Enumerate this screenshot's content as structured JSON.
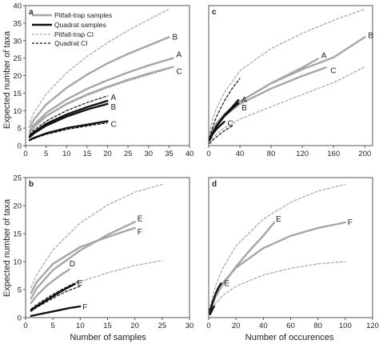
{
  "figure": {
    "ylabel": "Expected number of taxa",
    "xlabel_left": "Number of samples",
    "xlabel_right": "Number of occurences"
  },
  "legend": {
    "items": [
      {
        "label": "Pitfall-trap samples",
        "style": "solid",
        "color": "#a6a6a6"
      },
      {
        "label": "Quadrat samples",
        "style": "solid",
        "color": "#111111"
      },
      {
        "label": "Pitfall-trap CI",
        "style": "dashed",
        "color": "#a6a6a6"
      },
      {
        "label": "Quadrat CI",
        "style": "dashed",
        "color": "#111111"
      }
    ]
  },
  "colors": {
    "pitfall": "#a6a6a6",
    "quadrat": "#111111"
  },
  "chart_data": [
    {
      "panel": "a",
      "type": "line",
      "xlim": [
        0,
        40
      ],
      "ylim": [
        0,
        40
      ],
      "xticks": [
        0,
        5,
        10,
        15,
        20,
        25,
        30,
        35,
        40
      ],
      "yticks": [
        0,
        5,
        10,
        15,
        20,
        25,
        30,
        35,
        40
      ],
      "series": [
        {
          "label": "B",
          "group": "pitfall",
          "style": "solid",
          "x": [
            1,
            2,
            5,
            10,
            15,
            20,
            25,
            30,
            35
          ],
          "y": [
            5.3,
            7.4,
            11.7,
            16.5,
            20.3,
            23.5,
            26.2,
            28.6,
            31.0
          ]
        },
        {
          "label": "A",
          "group": "pitfall",
          "style": "solid",
          "x": [
            1,
            2,
            5,
            10,
            15,
            20,
            25,
            30,
            36
          ],
          "y": [
            4.2,
            5.9,
            9.3,
            13.2,
            16.2,
            18.7,
            20.9,
            22.9,
            25.0
          ]
        },
        {
          "label": "C",
          "group": "pitfall",
          "style": "solid",
          "x": [
            1,
            2,
            5,
            10,
            15,
            20,
            25,
            30,
            36
          ],
          "y": [
            3.7,
            5.3,
            8.4,
            11.9,
            14.6,
            16.8,
            18.8,
            20.6,
            22.5
          ]
        },
        {
          "label": "",
          "group": "pitfall",
          "style": "dashed",
          "x": [
            1,
            2,
            5,
            10,
            15,
            20,
            25,
            30,
            35
          ],
          "y": [
            6.6,
            9.3,
            14.7,
            20.8,
            25.5,
            29.4,
            32.9,
            36.0,
            39.0
          ]
        },
        {
          "label": "",
          "group": "pitfall",
          "style": "dashed",
          "x": [
            1,
            2,
            5,
            10,
            15,
            20,
            25,
            30,
            35
          ],
          "y": [
            3.7,
            5.2,
            8.3,
            11.7,
            14.3,
            16.5,
            18.5,
            20.2,
            22.0
          ]
        },
        {
          "label": "A",
          "group": "quadrat",
          "style": "solid",
          "x": [
            1,
            2,
            5,
            10,
            15,
            20
          ],
          "y": [
            2.6,
            3.8,
            6.2,
            8.9,
            11.0,
            12.8
          ]
        },
        {
          "label": "B",
          "group": "quadrat",
          "style": "solid",
          "x": [
            1,
            2,
            5,
            10,
            15,
            20
          ],
          "y": [
            2.4,
            3.5,
            5.7,
            8.3,
            10.3,
            11.9
          ]
        },
        {
          "label": "C",
          "group": "quadrat",
          "style": "solid",
          "x": [
            1,
            2,
            5,
            10,
            15,
            20
          ],
          "y": [
            1.6,
            2.2,
            3.5,
            5.0,
            6.0,
            7.0
          ]
        },
        {
          "label": "",
          "group": "quadrat",
          "style": "dashed",
          "x": [
            1,
            2,
            5,
            10,
            15,
            20
          ],
          "y": [
            3.1,
            4.4,
            7.0,
            10.0,
            12.3,
            14.2
          ]
        },
        {
          "label": "",
          "group": "quadrat",
          "style": "dashed",
          "x": [
            1,
            2,
            5,
            10,
            15,
            20
          ],
          "y": [
            1.4,
            2.0,
            3.2,
            4.6,
            5.6,
            6.5
          ]
        }
      ]
    },
    {
      "panel": "c",
      "type": "line",
      "xlim": [
        0,
        210
      ],
      "ylim": [
        0,
        40
      ],
      "xticks": [
        0,
        40,
        80,
        120,
        160,
        200
      ],
      "yticks": [],
      "series": [
        {
          "label": "B",
          "group": "pitfall",
          "style": "solid",
          "x": [
            1,
            5,
            10,
            20,
            40,
            80,
            120,
            160,
            200
          ],
          "y": [
            2.0,
            4.5,
            6.3,
            8.9,
            12.6,
            17.8,
            21.8,
            25.2,
            31.0
          ]
        },
        {
          "label": "A",
          "group": "pitfall",
          "style": "solid",
          "x": [
            1,
            5,
            10,
            20,
            40,
            80,
            120,
            140
          ],
          "y": [
            2.0,
            4.5,
            6.3,
            8.9,
            12.6,
            17.8,
            22.3,
            24.8
          ]
        },
        {
          "label": "C",
          "group": "pitfall",
          "style": "solid",
          "x": [
            1,
            5,
            10,
            20,
            40,
            80,
            120,
            150
          ],
          "y": [
            1.9,
            4.2,
            6.0,
            8.4,
            11.9,
            16.3,
            19.9,
            22.3
          ]
        },
        {
          "label": "",
          "group": "pitfall",
          "style": "dashed",
          "x": [
            1,
            5,
            10,
            20,
            40,
            80,
            120,
            160,
            200
          ],
          "y": [
            3.5,
            7.6,
            10.7,
            15.1,
            21.4,
            27.7,
            32.1,
            35.8,
            39.0
          ]
        },
        {
          "label": "",
          "group": "pitfall",
          "style": "dashed",
          "x": [
            1,
            5,
            10,
            20,
            40,
            80,
            120,
            160,
            200
          ],
          "y": [
            0.8,
            2.1,
            3.3,
            5.0,
            7.6,
            11.1,
            14.6,
            18.0,
            22.5
          ]
        },
        {
          "label": "A",
          "group": "quadrat",
          "style": "solid",
          "x": [
            1,
            5,
            10,
            20,
            30,
            38
          ],
          "y": [
            1.6,
            3.6,
            5.6,
            8.6,
            11.0,
            13.0
          ]
        },
        {
          "label": "B",
          "group": "quadrat",
          "style": "solid",
          "x": [
            1,
            5,
            10,
            20,
            30,
            38
          ],
          "y": [
            1.6,
            3.6,
            5.5,
            8.4,
            10.6,
            12.1
          ]
        },
        {
          "label": "C",
          "group": "quadrat",
          "style": "solid",
          "x": [
            1,
            5,
            10,
            15,
            20
          ],
          "y": [
            1.5,
            3.3,
            4.7,
            5.8,
            6.8
          ]
        },
        {
          "label": "",
          "group": "quadrat",
          "style": "dashed",
          "x": [
            1,
            5,
            10,
            20,
            30,
            40
          ],
          "y": [
            2.3,
            5.3,
            8.3,
            12.7,
            16.3,
            19.2
          ]
        },
        {
          "label": "",
          "group": "quadrat",
          "style": "dashed",
          "x": [
            1,
            5,
            10,
            20,
            30
          ],
          "y": [
            0.6,
            1.5,
            2.5,
            4.2,
            5.6
          ]
        }
      ]
    },
    {
      "panel": "b",
      "type": "line",
      "xlim": [
        0,
        30
      ],
      "ylim": [
        0,
        25
      ],
      "xticks": [
        0,
        5,
        10,
        15,
        20,
        25,
        30
      ],
      "yticks": [
        0,
        5,
        10,
        15,
        20,
        25
      ],
      "series": [
        {
          "label": "E",
          "group": "pitfall",
          "style": "solid",
          "x": [
            1,
            2,
            5,
            10,
            15,
            20
          ],
          "y": [
            3.4,
            5.2,
            8.5,
            12.0,
            14.8,
            17.1
          ]
        },
        {
          "label": "F",
          "group": "pitfall",
          "style": "solid",
          "x": [
            1,
            2,
            5,
            10,
            15,
            20
          ],
          "y": [
            4.4,
            6.3,
            9.6,
            12.6,
            14.4,
            16.0
          ]
        },
        {
          "label": "D",
          "group": "pitfall",
          "style": "solid",
          "x": [
            1,
            2,
            4,
            6,
            8
          ],
          "y": [
            2.6,
            3.9,
            5.8,
            7.3,
            8.6
          ]
        },
        {
          "label": "",
          "group": "pitfall",
          "style": "dashed",
          "x": [
            1,
            2,
            5,
            10,
            15,
            20,
            25
          ],
          "y": [
            5.3,
            7.6,
            12.1,
            16.9,
            20.1,
            22.4,
            23.8
          ]
        },
        {
          "label": "",
          "group": "pitfall",
          "style": "dashed",
          "x": [
            1,
            2,
            5,
            10,
            15,
            20,
            25
          ],
          "y": [
            1.6,
            2.4,
            4.2,
            6.4,
            8.0,
            9.3,
            10.2
          ]
        },
        {
          "label": "E",
          "group": "quadrat",
          "style": "solid",
          "x": [
            1,
            2,
            4,
            6,
            8,
            9
          ],
          "y": [
            1.3,
            2.0,
            3.2,
            4.4,
            5.5,
            6.0
          ]
        },
        {
          "label": "F",
          "group": "quadrat",
          "style": "solid",
          "x": [
            1,
            2,
            4,
            6,
            8,
            10
          ],
          "y": [
            0.3,
            0.5,
            0.9,
            1.3,
            1.7,
            2.0
          ]
        },
        {
          "label": "",
          "group": "quadrat",
          "style": "dashed",
          "x": [
            1,
            2,
            4,
            6,
            8,
            10
          ],
          "y": [
            1.5,
            2.2,
            3.5,
            4.7,
            5.7,
            6.6
          ]
        },
        {
          "label": "",
          "group": "quadrat",
          "style": "dashed",
          "x": [
            1,
            2,
            4,
            6,
            8,
            10
          ],
          "y": [
            1.1,
            1.8,
            2.9,
            4.0,
            4.9,
            5.6
          ]
        }
      ]
    },
    {
      "panel": "d",
      "type": "line",
      "xlim": [
        0,
        120
      ],
      "ylim": [
        0,
        25
      ],
      "xticks": [
        0,
        20,
        40,
        60,
        80,
        100,
        120
      ],
      "yticks": [],
      "series": [
        {
          "label": "E",
          "group": "pitfall",
          "style": "solid",
          "x": [
            1,
            5,
            10,
            20,
            30,
            40,
            48
          ],
          "y": [
            1.2,
            3.7,
            5.8,
            9.1,
            12.0,
            14.6,
            17.0
          ]
        },
        {
          "label": "F",
          "group": "pitfall",
          "style": "solid",
          "x": [
            1,
            5,
            10,
            20,
            40,
            60,
            80,
            100
          ],
          "y": [
            1.4,
            4.0,
            6.1,
            8.9,
            12.4,
            14.6,
            16.0,
            17.0
          ]
        },
        {
          "label": "",
          "group": "pitfall",
          "style": "dashed",
          "x": [
            1,
            5,
            10,
            20,
            40,
            60,
            80,
            100
          ],
          "y": [
            2.0,
            5.6,
            8.7,
            12.8,
            17.6,
            20.6,
            22.6,
            23.8
          ]
        },
        {
          "label": "",
          "group": "pitfall",
          "style": "dashed",
          "x": [
            1,
            5,
            10,
            20,
            40,
            60,
            80,
            100
          ],
          "y": [
            0.9,
            2.5,
            3.9,
            5.6,
            7.6,
            8.8,
            9.6,
            10.0
          ]
        },
        {
          "label": "E",
          "group": "quadrat",
          "style": "solid",
          "x": [
            1,
            3,
            5,
            7,
            9
          ],
          "y": [
            1.1,
            2.8,
            4.2,
            5.3,
            6.1
          ]
        },
        {
          "label": "F",
          "group": "quadrat",
          "style": "solid",
          "x": [
            1,
            2,
            3,
            4
          ],
          "y": [
            0.6,
            1.1,
            1.6,
            2.0
          ]
        }
      ]
    }
  ]
}
